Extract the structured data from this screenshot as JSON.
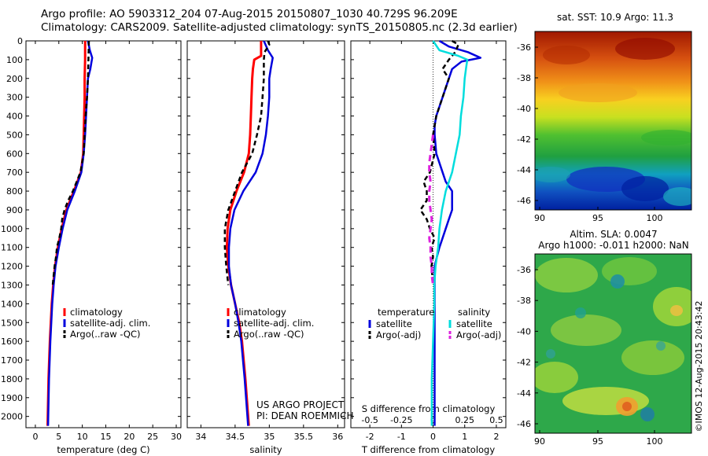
{
  "header": {
    "line1": "Argo profile: AO 5903312_204 07-Aug-2015 20150807_1030 40.729S 96.209E",
    "line2": "Climatology: CARS2009. Satellite-adjusted climatology: synTS_20150805.nc (2.3d earlier)"
  },
  "colors": {
    "climatology": "#ff0000",
    "satellite": "#0000dd",
    "argo": "#000000",
    "sal_satellite": "#00dddd",
    "sal_argo": "#dd22dd"
  },
  "y_axis": {
    "ticks": [
      0,
      100,
      200,
      300,
      400,
      500,
      600,
      700,
      800,
      900,
      1000,
      1100,
      1200,
      1300,
      1400,
      1500,
      1600,
      1700,
      1800,
      1900,
      2000
    ],
    "range": [
      0,
      2060
    ]
  },
  "credit": {
    "line1": "US ARGO PROJECT",
    "line2": "PI: DEAN ROEMMICH"
  },
  "sst_map": {
    "title": "sat. SST: 10.9 Argo: 11.3",
    "lat_ticks": [
      "-36",
      "-38",
      "-40",
      "-42",
      "-44",
      "-46"
    ],
    "lon_ticks": [
      "90",
      "95",
      "100"
    ]
  },
  "sla_map": {
    "title1": "Altim. SLA: 0.0047",
    "title2": "Argo h1000: -0.011 h2000: NaN",
    "lat_ticks": [
      "-36",
      "-38",
      "-40",
      "-42",
      "-44",
      "-46"
    ],
    "lon_ticks": [
      "90",
      "95",
      "100"
    ]
  },
  "timestamp": "©IMOS 12-Aug-2015 20:43:42",
  "chart_data": [
    {
      "type": "line",
      "xlabel": "temperature (deg C)",
      "xlim": [
        -2,
        31
      ],
      "xticks": [
        0,
        5,
        10,
        15,
        20,
        25,
        30
      ],
      "ylim": [
        0,
        2060
      ],
      "legend": [
        "climatology",
        "satellite-adj. clim.",
        "Argo(..raw -QC)"
      ],
      "legend_position": "lower-right",
      "series": [
        {
          "name": "climatology",
          "depth": [
            0,
            100,
            200,
            300,
            400,
            500,
            600,
            700,
            800,
            850,
            900,
            1000,
            1100,
            1200,
            1300,
            1400,
            1600,
            1800,
            2050
          ],
          "values": [
            10.6,
            10.6,
            10.5,
            10.5,
            10.4,
            10.3,
            10.2,
            9.7,
            8.2,
            7.4,
            6.6,
            5.6,
            4.8,
            4.2,
            3.8,
            3.5,
            3.1,
            2.8,
            2.6
          ]
        },
        {
          "name": "satellite-adj. clim.",
          "depth": [
            0,
            50,
            90,
            150,
            200,
            300,
            400,
            500,
            600,
            700,
            800,
            850,
            900,
            1000,
            1100,
            1200,
            1300,
            1400,
            1600,
            1800,
            2050
          ],
          "values": [
            11.2,
            11.6,
            12.1,
            11.7,
            11.2,
            11.0,
            10.8,
            10.6,
            10.3,
            9.8,
            8.4,
            7.6,
            6.8,
            5.8,
            5.0,
            4.3,
            3.9,
            3.6,
            3.2,
            2.9,
            2.7
          ]
        },
        {
          "name": "Argo(..raw -QC)",
          "depth": [
            0,
            100,
            200,
            300,
            400,
            500,
            600,
            700,
            800,
            850,
            900,
            950,
            1000,
            1050,
            1100,
            1150,
            1200,
            1250,
            1300
          ],
          "values": [
            11.4,
            11.3,
            11.2,
            11.0,
            10.7,
            10.5,
            10.3,
            9.6,
            8.0,
            7.0,
            6.2,
            5.7,
            5.5,
            5.1,
            4.6,
            4.4,
            4.1,
            3.9,
            3.7
          ]
        }
      ]
    },
    {
      "type": "line",
      "xlabel": "salinity",
      "xlim": [
        33.8,
        36.1
      ],
      "xticks": [
        34,
        34.5,
        35,
        35.5,
        36
      ],
      "ylim": [
        0,
        2060
      ],
      "legend": [
        "climatology",
        "satellite-adj. clim.",
        "Argo(..raw -QC)"
      ],
      "legend_position": "lower-right",
      "series": [
        {
          "name": "climatology",
          "depth": [
            0,
            80,
            100,
            150,
            200,
            300,
            400,
            500,
            600,
            700,
            800,
            900,
            1000,
            1100,
            1200,
            1300,
            1400,
            1500,
            1600,
            1800,
            2050
          ],
          "values": [
            34.88,
            34.88,
            34.78,
            34.76,
            34.75,
            34.74,
            34.73,
            34.72,
            34.7,
            34.63,
            34.52,
            34.43,
            34.39,
            34.38,
            34.4,
            34.44,
            34.5,
            34.56,
            34.6,
            34.65,
            34.7
          ]
        },
        {
          "name": "satellite-adj. clim.",
          "depth": [
            0,
            50,
            90,
            150,
            200,
            300,
            400,
            500,
            600,
            700,
            800,
            900,
            1000,
            1100,
            1200,
            1300,
            1400,
            1500,
            1600,
            1800,
            2050
          ],
          "values": [
            34.92,
            34.98,
            35.05,
            35.02,
            35.0,
            35.0,
            34.98,
            34.95,
            34.9,
            34.8,
            34.62,
            34.49,
            34.43,
            34.41,
            34.41,
            34.44,
            34.5,
            34.55,
            34.59,
            34.64,
            34.69
          ]
        },
        {
          "name": "Argo(..raw -QC)",
          "depth": [
            0,
            20,
            60,
            100,
            150,
            200,
            300,
            400,
            500,
            600,
            700,
            800,
            900,
            1000,
            1100,
            1200,
            1300
          ],
          "values": [
            34.98,
            35.0,
            34.93,
            34.92,
            34.92,
            34.92,
            34.9,
            34.88,
            34.82,
            34.75,
            34.6,
            34.5,
            34.4,
            34.35,
            34.35,
            34.37,
            34.4
          ]
        }
      ]
    },
    {
      "type": "line",
      "xlabel": "T difference from climatology",
      "x2label": "S difference from climatology",
      "xlim": [
        -2.6,
        2.3
      ],
      "xticks": [
        -2,
        -1,
        0,
        1,
        2
      ],
      "x2ticks": [
        -0.5,
        -0.25,
        0,
        0.25,
        0.5
      ],
      "ylim": [
        0,
        2060
      ],
      "legend_titles": [
        "temperature",
        "salinity"
      ],
      "legend": [
        "satellite",
        "Argo(-adj)",
        "satellite",
        "Argo(-adj)"
      ],
      "series": [
        {
          "name": "satellite",
          "variable": "temperature",
          "depth": [
            0,
            30,
            60,
            90,
            110,
            150,
            200,
            300,
            400,
            450,
            500,
            600,
            700,
            750,
            800,
            850,
            900,
            950,
            1000,
            1050,
            1100,
            1150,
            1200,
            1300,
            1400,
            1600,
            1800,
            2050
          ],
          "values": [
            0.2,
            0.5,
            1.1,
            1.5,
            0.9,
            0.6,
            0.5,
            0.3,
            0.1,
            0.05,
            0.05,
            0.1,
            0.3,
            0.4,
            0.6,
            0.6,
            0.6,
            0.5,
            0.4,
            0.3,
            0.2,
            0.12,
            0.05,
            0.05,
            0.05,
            0.05,
            0.05,
            0.05
          ]
        },
        {
          "name": "Argo(-adj)",
          "variable": "temperature",
          "depth": [
            0,
            20,
            60,
            100,
            150,
            200,
            300,
            400,
            500,
            600,
            700,
            750,
            800,
            850,
            900,
            950,
            1000,
            1050,
            1100,
            1150,
            1200,
            1300
          ],
          "values": [
            0.6,
            0.8,
            0.7,
            0.5,
            0.3,
            0.5,
            0.3,
            0.1,
            0.0,
            0.05,
            -0.1,
            -0.3,
            -0.2,
            -0.2,
            -0.4,
            -0.2,
            -0.1,
            0.05,
            -0.05,
            0.0,
            -0.05,
            0.0
          ]
        },
        {
          "name": "satellite",
          "variable": "salinity",
          "depth": [
            0,
            50,
            80,
            100,
            150,
            200,
            300,
            400,
            500,
            600,
            700,
            800,
            900,
            1000,
            1100,
            1200,
            1300,
            1400,
            1600,
            1800,
            1900,
            2050
          ],
          "values": [
            0.0,
            0.05,
            0.2,
            0.27,
            0.26,
            0.25,
            0.24,
            0.22,
            0.21,
            0.18,
            0.15,
            0.1,
            0.07,
            0.05,
            0.04,
            0.02,
            0.01,
            0.01,
            0.0,
            -0.01,
            -0.01,
            -0.01
          ]
        },
        {
          "name": "Argo(-adj)",
          "variable": "salinity",
          "depth": [
            500,
            550,
            600,
            650,
            700,
            750,
            800,
            850,
            900,
            950,
            1000,
            1050,
            1100,
            1150,
            1200,
            1250,
            1300
          ],
          "values": [
            0.0,
            -0.01,
            -0.02,
            -0.03,
            -0.03,
            -0.02,
            -0.03,
            -0.03,
            -0.02,
            -0.01,
            -0.02,
            -0.03,
            -0.02,
            -0.02,
            -0.01,
            -0.01,
            0.0
          ]
        }
      ]
    }
  ]
}
